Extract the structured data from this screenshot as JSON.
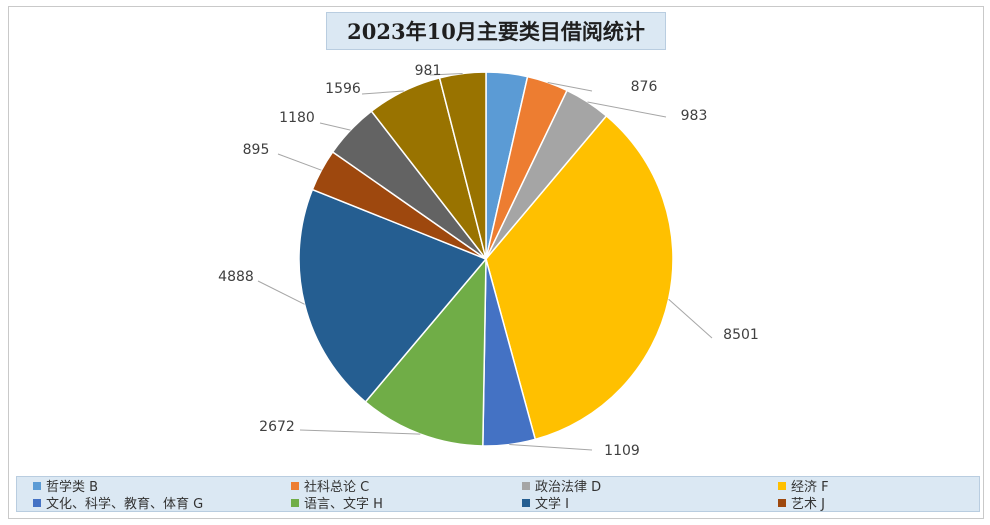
{
  "chart_data": {
    "type": "pie",
    "title": "2023年10月主要类目借阅统计",
    "slices": [
      {
        "name": "哲学类 B",
        "value": 876,
        "color": "#5b9bd5",
        "label": ""
      },
      {
        "name": "社科总论 C",
        "value": 876,
        "color": "#ed7d31",
        "label": "876"
      },
      {
        "name": "政治法律 D",
        "value": 983,
        "color": "#a5a5a5",
        "label": "983"
      },
      {
        "name": "经济 F",
        "value": 8501,
        "color": "#ffc000",
        "label": "8501"
      },
      {
        "name": "文化、科学、教育、体育 G",
        "value": 1109,
        "color": "#4472c4",
        "label": "1109"
      },
      {
        "name": "语言、文字 H",
        "value": 2672,
        "color": "#70ad47",
        "label": "2672"
      },
      {
        "name": "文学 I",
        "value": 4888,
        "color": "#255e91",
        "label": "4888"
      },
      {
        "name": "艺术 J",
        "value": 895,
        "color": "#9e480e",
        "label": "895"
      },
      {
        "name": "",
        "value": 1180,
        "color": "#636363",
        "label": "1180"
      },
      {
        "name": "",
        "value": 1596,
        "color": "#997300",
        "label": "1596"
      },
      {
        "name": "",
        "value": 981,
        "color": "#997300",
        "label": "981"
      }
    ],
    "legend_position": "bottom"
  }
}
